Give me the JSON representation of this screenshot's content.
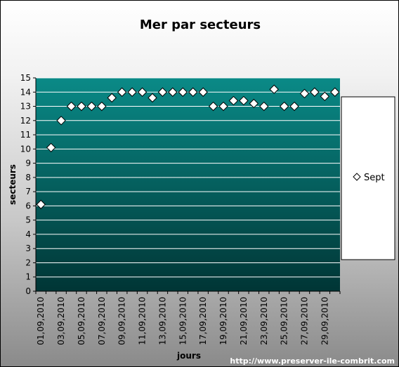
{
  "chart_data": {
    "type": "scatter",
    "title": "Mer par secteurs",
    "xlabel": "jours",
    "ylabel": "secteurs",
    "ylim": [
      0,
      15
    ],
    "y_ticks": [
      0,
      1,
      2,
      3,
      4,
      5,
      6,
      7,
      8,
      9,
      10,
      11,
      12,
      13,
      14,
      15
    ],
    "x_tick_labels": [
      "01,09,2010",
      "03,09,2010",
      "05,09,2010",
      "07,09,2010",
      "09,09,2010",
      "11,09,2010",
      "13,09,2010",
      "15,09,2010",
      "17,09,2010",
      "19,09,2010",
      "21,09,2010",
      "23,09,2010",
      "25,09,2010",
      "27,09,2010",
      "29,09,2010"
    ],
    "grid": true,
    "legend_position": "right",
    "series": [
      {
        "name": "Sept",
        "marker": "diamond",
        "x": [
          "01,09,2010",
          "02,09,2010",
          "03,09,2010",
          "04,09,2010",
          "05,09,2010",
          "06,09,2010",
          "07,09,2010",
          "08,09,2010",
          "09,09,2010",
          "10,09,2010",
          "11,09,2010",
          "12,09,2010",
          "13,09,2010",
          "14,09,2010",
          "15,09,2010",
          "16,09,2010",
          "17,09,2010",
          "18,09,2010",
          "19,09,2010",
          "20,09,2010",
          "21,09,2010",
          "22,09,2010",
          "23,09,2010",
          "24,09,2010",
          "25,09,2010",
          "26,09,2010",
          "27,09,2010",
          "28,09,2010",
          "29,09,2010",
          "30,09,2010"
        ],
        "values": [
          6.1,
          10.1,
          12,
          13,
          13,
          13,
          13,
          13.6,
          14,
          14,
          14,
          13.6,
          14,
          14,
          14,
          14,
          14,
          13,
          13,
          13.4,
          13.4,
          13.2,
          13,
          14.2,
          13,
          13,
          13.9,
          14,
          13.7,
          14
        ]
      }
    ],
    "colors": {
      "plot_top": "#0a8a87",
      "plot_bottom": "#003535",
      "gridline": "#ffffff",
      "marker_fill": "#ffffff",
      "marker_stroke": "#000000"
    }
  },
  "footer": {
    "watermark": "http://www.preserver-ile-combrit.com"
  }
}
